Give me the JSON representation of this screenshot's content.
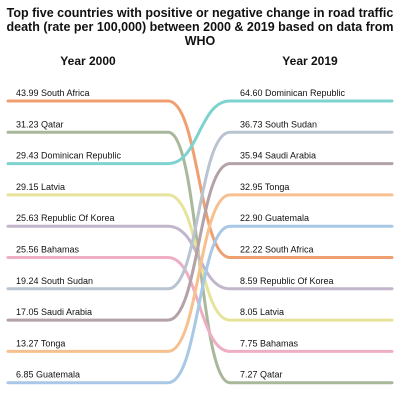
{
  "chart_data": {
    "type": "slope",
    "title": "Top five countries with positive or negative change in road traffic death (rate per 100,000) between 2000 & 2019 based on data from WHO",
    "periods": [
      "Year 2000",
      "Year 2019"
    ],
    "series": [
      {
        "name": "South Africa",
        "v2000": "43.99",
        "v2019": "22.22",
        "rank2000": 0,
        "rank2019": 5,
        "color": "#f0a070"
      },
      {
        "name": "Qatar",
        "v2000": "31.23",
        "v2019": "7.27",
        "rank2000": 1,
        "rank2019": 9,
        "color": "#a9b79a"
      },
      {
        "name": "Dominican Republic",
        "v2000": "29.43",
        "v2019": "64.60",
        "rank2000": 2,
        "rank2019": 0,
        "color": "#7fd3cf"
      },
      {
        "name": "Latvia",
        "v2000": "29.15",
        "v2019": "8.05",
        "rank2000": 3,
        "rank2019": 7,
        "color": "#e6e39a"
      },
      {
        "name": "Republic Of Korea",
        "v2000": "25.63",
        "v2019": "8.59",
        "rank2000": 4,
        "rank2019": 6,
        "color": "#c2b6cd"
      },
      {
        "name": "Bahamas",
        "v2000": "25.56",
        "v2019": "7.75",
        "rank2000": 5,
        "rank2019": 8,
        "color": "#eeaec3"
      },
      {
        "name": "South Sudan",
        "v2000": "19.24",
        "v2019": "36.73",
        "rank2000": 6,
        "rank2019": 1,
        "color": "#b9c4d1"
      },
      {
        "name": "Saudi Arabia",
        "v2000": "17.05",
        "v2019": "35.94",
        "rank2000": 7,
        "rank2019": 2,
        "color": "#b3a2a8"
      },
      {
        "name": "Tonga",
        "v2000": "13.27",
        "v2019": "32.95",
        "rank2000": 8,
        "rank2019": 3,
        "color": "#f6c18f"
      },
      {
        "name": "Guatemala",
        "v2000": "6.85",
        "v2019": "22.90",
        "rank2000": 9,
        "rank2019": 4,
        "color": "#a9c8e6"
      }
    ]
  }
}
